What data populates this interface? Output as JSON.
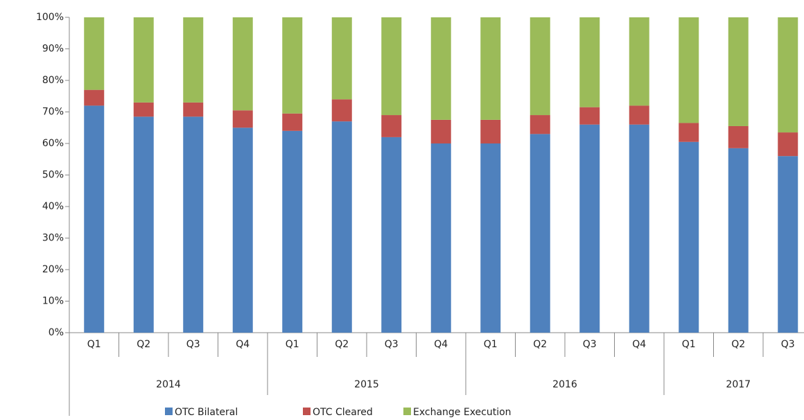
{
  "chart_data": {
    "type": "stacked_bar",
    "groups": [
      {
        "label": "2014",
        "categories": [
          "Q1",
          "Q2",
          "Q3",
          "Q4"
        ]
      },
      {
        "label": "2015",
        "categories": [
          "Q1",
          "Q2",
          "Q3",
          "Q4"
        ]
      },
      {
        "label": "2016",
        "categories": [
          "Q1",
          "Q2",
          "Q3",
          "Q4"
        ]
      },
      {
        "label": "2017",
        "categories": [
          "Q1",
          "Q2",
          "Q3"
        ]
      }
    ],
    "series": [
      {
        "name": "OTC Bilateral",
        "color": "#4f81bd",
        "values": [
          72,
          68.5,
          68.5,
          65,
          64,
          67,
          62,
          60,
          60,
          63,
          66,
          66,
          60.5,
          58.5,
          56
        ]
      },
      {
        "name": "OTC Cleared",
        "color": "#c0504d",
        "values": [
          5,
          4.5,
          4.5,
          5.5,
          5.5,
          7,
          7,
          7.5,
          7.5,
          6,
          5.5,
          6,
          6,
          7,
          7.5
        ]
      },
      {
        "name": "Exchange Execution",
        "color": "#9bbb59",
        "values": [
          23,
          27,
          27,
          29.5,
          30.5,
          26,
          31,
          32.5,
          32.5,
          31,
          28.5,
          28,
          33.5,
          34.5,
          36.5
        ]
      }
    ],
    "ylim": [
      0,
      100
    ],
    "yticks": [
      {
        "value": 0,
        "label": "0%"
      },
      {
        "value": 10,
        "label": "10%"
      },
      {
        "value": 20,
        "label": "20%"
      },
      {
        "value": 30,
        "label": "30%"
      },
      {
        "value": 40,
        "label": "40%"
      },
      {
        "value": 50,
        "label": "50%"
      },
      {
        "value": 60,
        "label": "60%"
      },
      {
        "value": 70,
        "label": "70%"
      },
      {
        "value": 80,
        "label": "80%"
      },
      {
        "value": 90,
        "label": "90%"
      },
      {
        "value": 100,
        "label": "100%"
      }
    ],
    "legend": "bottom"
  }
}
